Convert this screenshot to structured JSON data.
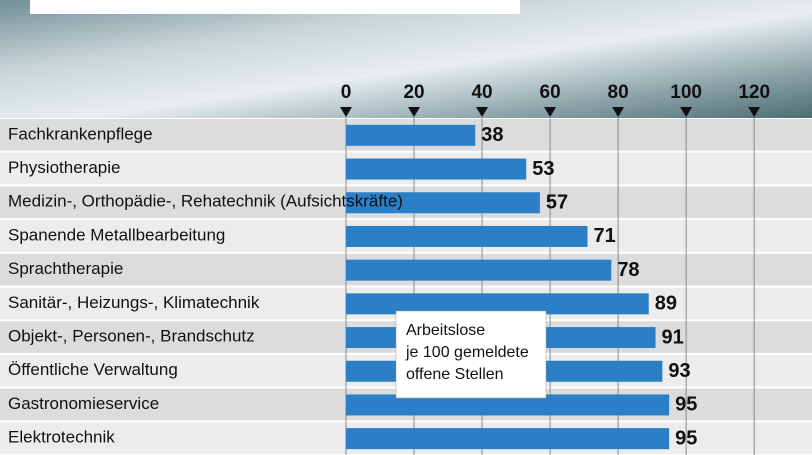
{
  "chart_data": {
    "type": "bar",
    "orientation": "horizontal",
    "categories": [
      "Fachkrankenpflege",
      "Physiotherapie",
      "Medizin-, Orthopädie-, Rehatechnik (Aufsichtskräfte)",
      "Spanende Metallbearbeitung",
      "Sprachtherapie",
      "Sanitär-, Heizungs-, Klimatechnik",
      "Objekt-, Personen-, Brandschutz",
      "Öffentliche Verwaltung",
      "Gastronomieservice",
      "Elektrotechnik"
    ],
    "values": [
      38,
      53,
      57,
      71,
      78,
      89,
      91,
      93,
      95,
      95
    ],
    "color": "#2b7fc6",
    "xlim": [
      0,
      137
    ],
    "xticks": [
      0,
      20,
      40,
      60,
      80,
      100,
      120
    ],
    "grid": true,
    "annotation": [
      "Arbeitslose",
      "je 100 gemeldete",
      "offene Stellen"
    ]
  }
}
